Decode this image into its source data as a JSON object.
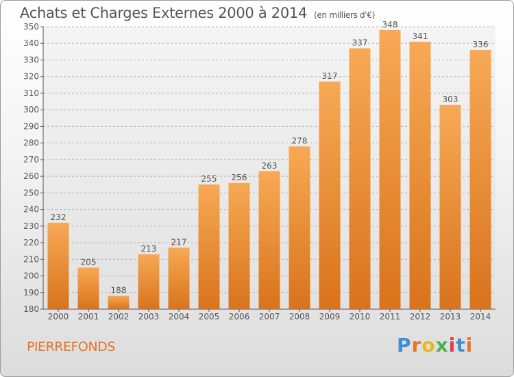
{
  "title": "Achats et Charges Externes 2000 à 2014",
  "title_unit": "(en milliers d'€)",
  "place": "PIERREFONDS",
  "logo": "Proxiti",
  "colors": {
    "bar_light": "#f7a955",
    "bar_dark": "#d9731c",
    "text": "#555555",
    "accent": "#e8732a"
  },
  "chart_data": {
    "type": "bar",
    "title": "Achats et Charges Externes 2000 à 2014",
    "subtitle": "(en milliers d'€)",
    "categories": [
      "2000",
      "2001",
      "2002",
      "2003",
      "2004",
      "2005",
      "2006",
      "2007",
      "2008",
      "2009",
      "2010",
      "2011",
      "2012",
      "2013",
      "2014"
    ],
    "values": [
      232,
      205,
      188,
      213,
      217,
      255,
      256,
      263,
      278,
      317,
      337,
      348,
      341,
      303,
      336
    ],
    "ylim": [
      180,
      350
    ],
    "yticks": [
      180,
      190,
      200,
      210,
      220,
      230,
      240,
      250,
      260,
      270,
      280,
      290,
      300,
      310,
      320,
      330,
      340,
      350
    ],
    "grid": true,
    "data_labels": true
  }
}
